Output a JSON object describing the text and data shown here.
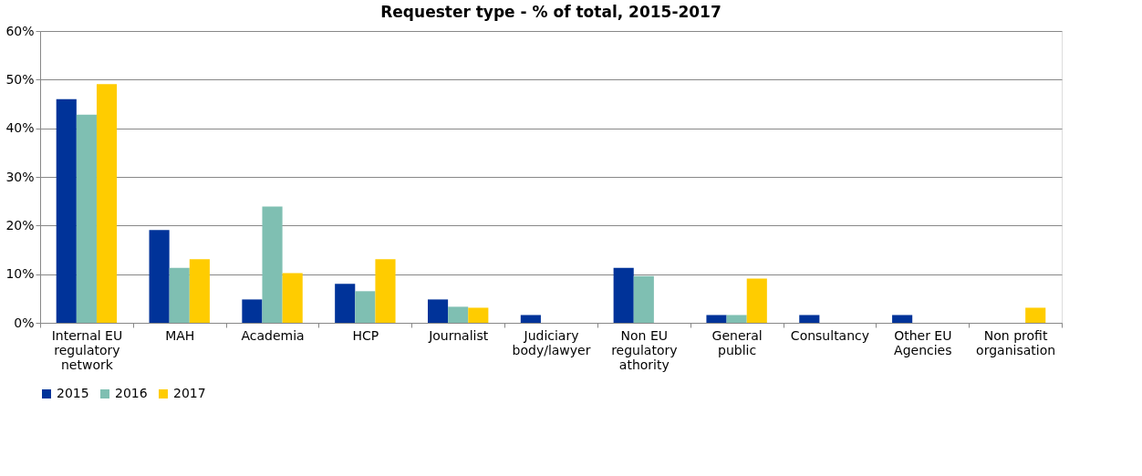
{
  "chart_data": {
    "type": "bar",
    "title": "Requester type - % of total, 2015-2017",
    "categories": [
      "Internal EU regulatory network",
      "MAH",
      "Academia",
      "HCP",
      "Journalist",
      "Judiciary body/lawyer",
      "Non EU regulatory athority",
      "General public",
      "Consultancy",
      "Other EU Agencies",
      "Non profit organisation"
    ],
    "series": [
      {
        "name": "2015",
        "color": "#003399",
        "values": [
          46,
          19.1,
          4.8,
          8,
          4.8,
          1.6,
          11.3,
          1.6,
          1.6,
          1.6,
          0
        ]
      },
      {
        "name": "2016",
        "color": "#7fbfb2",
        "values": [
          42.8,
          11.3,
          23.9,
          6.5,
          3.3,
          0,
          9.6,
          1.6,
          0,
          0,
          0
        ]
      },
      {
        "name": "2017",
        "color": "#ffcc00",
        "values": [
          49.1,
          13.1,
          10.2,
          13.1,
          3.1,
          0,
          0,
          9.1,
          0,
          0,
          3.1
        ]
      }
    ],
    "ylim": [
      0,
      60
    ],
    "yticks": [
      {
        "value": 0,
        "label": "0%"
      },
      {
        "value": 10,
        "label": "10%"
      },
      {
        "value": 20,
        "label": "20%"
      },
      {
        "value": 30,
        "label": "30%"
      },
      {
        "value": 40,
        "label": "40%"
      },
      {
        "value": 50,
        "label": "50%"
      },
      {
        "value": 60,
        "label": "60%"
      }
    ],
    "grid": "y",
    "legend": "bottom"
  }
}
